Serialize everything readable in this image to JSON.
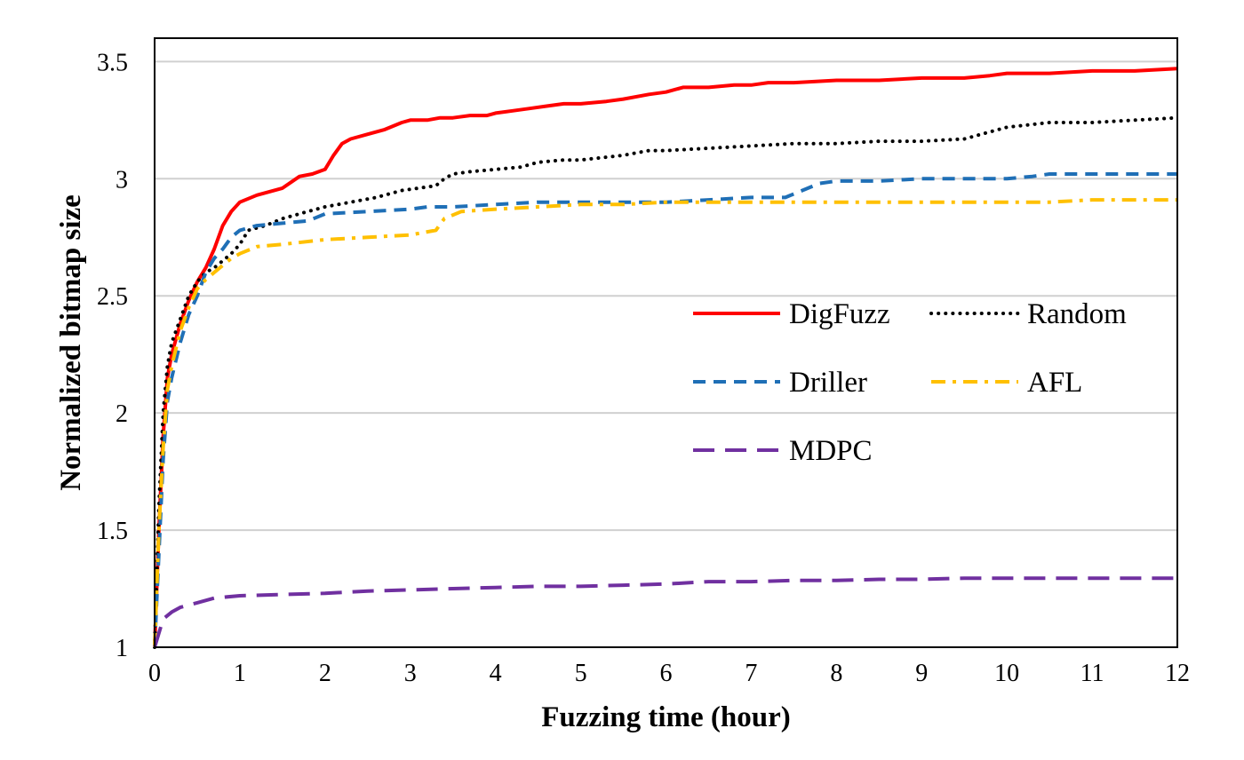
{
  "chart_data": {
    "type": "line",
    "title": "",
    "xlabel": "Fuzzing time (hour)",
    "ylabel": "Normalized bitmap size",
    "xlim": [
      0,
      12
    ],
    "ylim": [
      1,
      3.6
    ],
    "xticks": [
      0,
      1,
      2,
      3,
      4,
      5,
      6,
      7,
      8,
      9,
      10,
      11,
      12
    ],
    "yticks": [
      1,
      1.5,
      2,
      2.5,
      3,
      3.5
    ],
    "ytick_labels": [
      "1",
      "1.5",
      "2",
      "2.5",
      "3",
      "3.5"
    ],
    "grid": "horizontal",
    "legend_position": "right-center, inside plot",
    "series": [
      {
        "name": "DigFuzz",
        "color": "#ff0000",
        "style": "solid",
        "x": [
          0,
          0.05,
          0.1,
          0.15,
          0.2,
          0.3,
          0.4,
          0.5,
          0.6,
          0.7,
          0.8,
          0.9,
          1.0,
          1.2,
          1.5,
          1.7,
          1.85,
          2.0,
          2.1,
          2.2,
          2.3,
          2.5,
          2.7,
          2.9,
          3.0,
          3.2,
          3.35,
          3.5,
          3.7,
          3.9,
          4.0,
          4.2,
          4.4,
          4.6,
          4.8,
          5.0,
          5.3,
          5.5,
          5.8,
          6.0,
          6.2,
          6.5,
          6.8,
          7.0,
          7.2,
          7.5,
          8.0,
          8.5,
          9.0,
          9.5,
          9.8,
          10.0,
          10.5,
          11.0,
          11.5,
          12.0
        ],
        "y": [
          1.0,
          1.5,
          1.9,
          2.15,
          2.25,
          2.38,
          2.48,
          2.56,
          2.62,
          2.7,
          2.8,
          2.86,
          2.9,
          2.93,
          2.96,
          3.01,
          3.02,
          3.04,
          3.1,
          3.15,
          3.17,
          3.19,
          3.21,
          3.24,
          3.25,
          3.25,
          3.26,
          3.26,
          3.27,
          3.27,
          3.28,
          3.29,
          3.3,
          3.31,
          3.32,
          3.32,
          3.33,
          3.34,
          3.36,
          3.37,
          3.39,
          3.39,
          3.4,
          3.4,
          3.41,
          3.41,
          3.42,
          3.42,
          3.43,
          3.43,
          3.44,
          3.45,
          3.45,
          3.46,
          3.46,
          3.47
        ]
      },
      {
        "name": "Random",
        "color": "#000000",
        "style": "dotted",
        "x": [
          0,
          0.05,
          0.1,
          0.15,
          0.2,
          0.3,
          0.4,
          0.5,
          0.6,
          0.7,
          0.8,
          0.9,
          1.0,
          1.1,
          1.3,
          1.5,
          1.8,
          2.0,
          2.3,
          2.6,
          2.9,
          3.1,
          3.3,
          3.4,
          3.5,
          3.7,
          4.0,
          4.3,
          4.5,
          4.8,
          5.0,
          5.5,
          5.8,
          6.0,
          6.5,
          7.0,
          7.5,
          8.0,
          8.5,
          9.0,
          9.5,
          9.7,
          9.9,
          10.0,
          10.5,
          11.0,
          11.5,
          12.0
        ],
        "y": [
          1.0,
          1.6,
          2.0,
          2.2,
          2.3,
          2.4,
          2.5,
          2.56,
          2.6,
          2.62,
          2.65,
          2.68,
          2.72,
          2.78,
          2.8,
          2.83,
          2.86,
          2.88,
          2.9,
          2.92,
          2.95,
          2.96,
          2.97,
          3.0,
          3.02,
          3.03,
          3.04,
          3.05,
          3.07,
          3.08,
          3.08,
          3.1,
          3.12,
          3.12,
          3.13,
          3.14,
          3.15,
          3.15,
          3.16,
          3.16,
          3.17,
          3.19,
          3.21,
          3.22,
          3.24,
          3.24,
          3.25,
          3.26
        ]
      },
      {
        "name": "Driller",
        "color": "#1f6fb6",
        "style": "dashed",
        "x": [
          0,
          0.05,
          0.1,
          0.15,
          0.2,
          0.3,
          0.4,
          0.5,
          0.6,
          0.7,
          0.8,
          0.9,
          1.0,
          1.2,
          1.5,
          1.8,
          2.0,
          2.5,
          3.0,
          3.2,
          3.5,
          4.0,
          4.5,
          5.0,
          5.5,
          6.0,
          6.5,
          7.0,
          7.4,
          7.6,
          7.8,
          8.0,
          8.5,
          9.0,
          9.5,
          10.0,
          10.3,
          10.5,
          11.0,
          11.5,
          12.0
        ],
        "y": [
          1.0,
          1.4,
          1.8,
          2.05,
          2.15,
          2.3,
          2.42,
          2.5,
          2.6,
          2.66,
          2.7,
          2.75,
          2.78,
          2.8,
          2.81,
          2.82,
          2.85,
          2.86,
          2.87,
          2.88,
          2.88,
          2.89,
          2.9,
          2.9,
          2.9,
          2.9,
          2.91,
          2.92,
          2.92,
          2.95,
          2.98,
          2.99,
          2.99,
          3.0,
          3.0,
          3.0,
          3.01,
          3.02,
          3.02,
          3.02,
          3.02
        ]
      },
      {
        "name": "AFL",
        "color": "#ffc000",
        "style": "dash-dot",
        "x": [
          0,
          0.05,
          0.1,
          0.15,
          0.2,
          0.3,
          0.4,
          0.5,
          0.6,
          0.7,
          0.8,
          0.9,
          1.0,
          1.2,
          1.5,
          2.0,
          2.5,
          3.0,
          3.3,
          3.4,
          3.6,
          4.0,
          4.5,
          5.0,
          5.5,
          6.0,
          6.5,
          7.0,
          7.5,
          8.0,
          8.5,
          9.0,
          9.5,
          10.0,
          10.5,
          11.0,
          11.5,
          12.0
        ],
        "y": [
          1.0,
          1.5,
          1.85,
          2.1,
          2.2,
          2.35,
          2.45,
          2.53,
          2.57,
          2.6,
          2.63,
          2.66,
          2.68,
          2.71,
          2.72,
          2.74,
          2.75,
          2.76,
          2.78,
          2.83,
          2.86,
          2.87,
          2.88,
          2.89,
          2.89,
          2.9,
          2.9,
          2.9,
          2.9,
          2.9,
          2.9,
          2.9,
          2.9,
          2.9,
          2.9,
          2.91,
          2.91,
          2.91
        ]
      },
      {
        "name": "MDPC",
        "color": "#7030a0",
        "style": "long-dash",
        "x": [
          0,
          0.1,
          0.2,
          0.3,
          0.5,
          0.7,
          1.0,
          1.5,
          2.0,
          2.5,
          3.0,
          3.5,
          4.0,
          4.5,
          5.0,
          5.5,
          6.0,
          6.5,
          7.0,
          7.5,
          8.0,
          8.5,
          9.0,
          9.5,
          10.0,
          10.5,
          11.0,
          11.5,
          12.0
        ],
        "y": [
          1.0,
          1.12,
          1.15,
          1.17,
          1.19,
          1.21,
          1.22,
          1.225,
          1.23,
          1.24,
          1.245,
          1.25,
          1.255,
          1.26,
          1.26,
          1.265,
          1.27,
          1.28,
          1.28,
          1.285,
          1.285,
          1.29,
          1.29,
          1.295,
          1.295,
          1.295,
          1.295,
          1.295,
          1.295
        ]
      }
    ]
  }
}
